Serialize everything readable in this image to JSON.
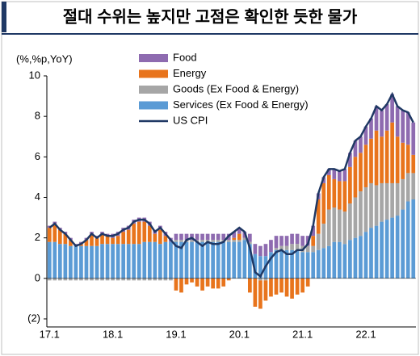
{
  "chart_data": {
    "type": "bar",
    "stacked": true,
    "title": "절대 수위는 높지만 고점은 확인한 듯한 물가",
    "y_label": "(%,%p,YoY)",
    "categories": [
      "17.1",
      null,
      null,
      null,
      null,
      null,
      null,
      null,
      null,
      null,
      null,
      null,
      "18.1",
      null,
      null,
      null,
      null,
      null,
      null,
      null,
      null,
      null,
      null,
      null,
      "19.1",
      null,
      null,
      null,
      null,
      null,
      null,
      null,
      null,
      null,
      null,
      null,
      "20.1",
      null,
      null,
      null,
      null,
      null,
      null,
      null,
      null,
      null,
      null,
      null,
      "21.1",
      null,
      null,
      null,
      null,
      null,
      null,
      null,
      null,
      null,
      null,
      null,
      "22.1",
      null,
      null,
      null,
      null,
      null,
      null,
      null,
      null,
      null
    ],
    "series": [
      {
        "name": "Services (Ex Food & Energy)",
        "color": "#5b9bd5",
        "values": [
          1.8,
          1.8,
          1.7,
          1.7,
          1.6,
          1.6,
          1.6,
          1.6,
          1.6,
          1.6,
          1.7,
          1.7,
          1.7,
          1.7,
          1.7,
          1.7,
          1.7,
          1.7,
          1.8,
          1.8,
          1.8,
          1.7,
          1.8,
          1.8,
          1.8,
          1.8,
          1.8,
          1.8,
          1.8,
          1.8,
          1.8,
          1.8,
          1.8,
          1.8,
          1.8,
          1.8,
          1.8,
          1.9,
          1.7,
          1.2,
          1.1,
          1.1,
          1.3,
          1.4,
          1.4,
          1.4,
          1.4,
          1.4,
          1.3,
          1.3,
          1.3,
          1.4,
          1.5,
          1.6,
          1.8,
          1.8,
          1.7,
          1.9,
          2.0,
          2.1,
          2.3,
          2.5,
          2.6,
          2.8,
          2.9,
          3.0,
          3.1,
          3.4,
          3.8,
          3.9
        ]
      },
      {
        "name": "Goods (Ex Food & Energy)",
        "color": "#a6a6a6",
        "values": [
          -0.1,
          -0.1,
          -0.1,
          -0.1,
          -0.1,
          -0.1,
          -0.1,
          -0.1,
          -0.1,
          -0.1,
          -0.1,
          -0.1,
          -0.1,
          -0.1,
          -0.1,
          -0.1,
          -0.1,
          -0.1,
          -0.1,
          -0.1,
          -0.1,
          -0.1,
          -0.1,
          -0.1,
          0.1,
          0.1,
          0.1,
          0.1,
          0.1,
          0.1,
          0.1,
          0.1,
          0.1,
          0.1,
          0.1,
          0.1,
          0.1,
          0.1,
          0.1,
          0.0,
          -0.1,
          -0.1,
          0.0,
          0.1,
          0.2,
          0.2,
          0.3,
          0.3,
          0.3,
          0.3,
          0.3,
          0.8,
          1.2,
          1.8,
          1.7,
          1.6,
          1.6,
          1.8,
          2.0,
          2.2,
          2.2,
          2.2,
          2.0,
          1.9,
          1.8,
          1.7,
          1.6,
          1.5,
          1.4,
          1.3
        ]
      },
      {
        "name": "Energy",
        "color": "#e8741c",
        "values": [
          0.7,
          0.9,
          0.7,
          0.5,
          0.3,
          0.0,
          0.1,
          0.3,
          0.6,
          0.4,
          0.5,
          0.4,
          0.3,
          0.4,
          0.6,
          0.7,
          1.0,
          1.1,
          1.0,
          0.8,
          0.4,
          0.7,
          0.3,
          0.0,
          -0.6,
          -0.7,
          -0.3,
          -0.2,
          -0.4,
          -0.6,
          -0.4,
          -0.5,
          -0.5,
          -0.4,
          -0.1,
          0.1,
          0.3,
          0.0,
          -0.7,
          -1.4,
          -1.4,
          -1.0,
          -0.9,
          -0.8,
          -0.7,
          -0.9,
          -1.0,
          -0.8,
          -0.7,
          -0.4,
          0.5,
          1.7,
          2.0,
          1.7,
          1.4,
          1.4,
          1.5,
          1.8,
          2.0,
          1.9,
          2.1,
          2.2,
          2.7,
          2.3,
          2.6,
          3.0,
          2.3,
          1.8,
          1.4,
          0.9
        ]
      },
      {
        "name": "Food",
        "color": "#8e6bb0",
        "values": [
          0.1,
          0.1,
          0.1,
          0.1,
          0.1,
          0.1,
          0.1,
          0.1,
          0.1,
          0.1,
          0.1,
          0.1,
          0.2,
          0.2,
          0.2,
          0.2,
          0.2,
          0.2,
          0.2,
          0.2,
          0.2,
          0.2,
          0.2,
          0.2,
          0.3,
          0.3,
          0.3,
          0.3,
          0.3,
          0.3,
          0.3,
          0.3,
          0.3,
          0.3,
          0.3,
          0.3,
          0.3,
          0.3,
          0.4,
          0.5,
          0.5,
          0.6,
          0.6,
          0.6,
          0.5,
          0.5,
          0.5,
          0.5,
          0.5,
          0.5,
          0.5,
          0.3,
          0.3,
          0.3,
          0.5,
          0.5,
          0.6,
          0.7,
          0.8,
          0.8,
          0.9,
          1.0,
          1.2,
          1.3,
          1.3,
          1.4,
          1.5,
          1.6,
          1.6,
          1.6
        ]
      }
    ],
    "line": {
      "name": "US CPI",
      "color": "#1f3864",
      "values": [
        2.5,
        2.7,
        2.4,
        2.2,
        1.9,
        1.6,
        1.7,
        1.9,
        2.2,
        2.0,
        2.2,
        2.1,
        2.1,
        2.2,
        2.4,
        2.5,
        2.8,
        2.9,
        2.9,
        2.7,
        2.3,
        2.5,
        2.2,
        1.9,
        1.6,
        1.5,
        1.9,
        2.0,
        1.8,
        1.6,
        1.8,
        1.7,
        1.7,
        1.8,
        2.1,
        2.3,
        2.5,
        2.3,
        1.5,
        0.3,
        0.1,
        0.6,
        1.0,
        1.3,
        1.4,
        1.2,
        1.2,
        1.4,
        1.4,
        1.7,
        2.6,
        4.2,
        5.0,
        5.4,
        5.4,
        5.3,
        5.4,
        6.2,
        6.8,
        7.0,
        7.5,
        7.9,
        8.5,
        8.3,
        8.6,
        9.1,
        8.5,
        8.3,
        8.2,
        7.7
      ]
    },
    "ylim": [
      -2,
      10
    ],
    "yticks": [
      {
        "value": -2,
        "label": "(2)"
      },
      0,
      2,
      4,
      6,
      8,
      10
    ],
    "grid": false
  }
}
